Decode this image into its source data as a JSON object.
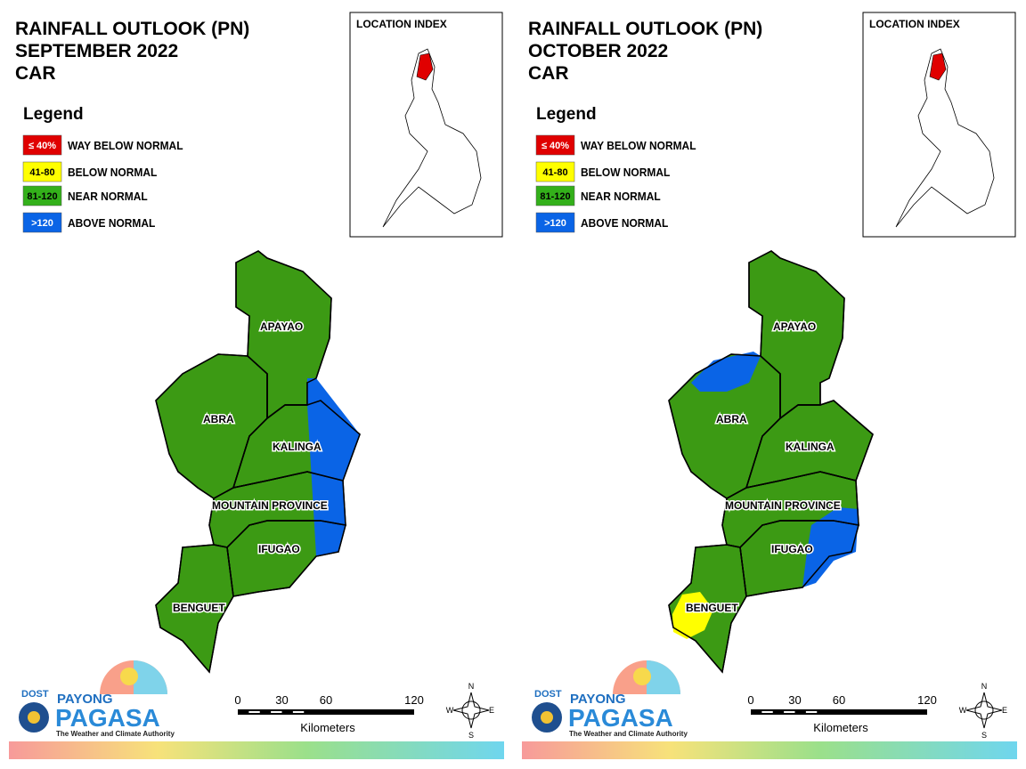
{
  "panels": [
    {
      "title": [
        "RAINFALL OUTLOOK (PN)",
        "SEPTEMBER 2022",
        "CAR"
      ],
      "location_index": "LOCATION INDEX",
      "legend": {
        "title": "Legend",
        "items": [
          {
            "key": "≤ 40%",
            "label": "WAY BELOW NORMAL"
          },
          {
            "key": "41-80",
            "label": "BELOW NORMAL"
          },
          {
            "key": "81-120",
            "label": "NEAR NORMAL"
          },
          {
            "key": ">120",
            "label": "ABOVE NORMAL"
          }
        ]
      },
      "provinces": [
        "APAYAO",
        "ABRA",
        "KALINGA",
        "MOUNTAIN PROVINCE",
        "IFUGAO",
        "BENGUET"
      ],
      "scale": {
        "ticks": [
          0,
          30,
          60,
          120
        ],
        "unit": "Kilometers"
      },
      "compass": [
        "N",
        "E",
        "S",
        "W"
      ],
      "logo": {
        "agency": "DOST",
        "brand1": "PAYONG",
        "brand2": "PAGASA",
        "tagline": "The Weather and Climate Authority"
      }
    },
    {
      "title": [
        "RAINFALL OUTLOOK (PN)",
        "OCTOBER 2022",
        "CAR"
      ],
      "location_index": "LOCATION INDEX",
      "legend": {
        "title": "Legend",
        "items": [
          {
            "key": "≤ 40%",
            "label": "WAY BELOW NORMAL"
          },
          {
            "key": "41-80",
            "label": "BELOW NORMAL"
          },
          {
            "key": "81-120",
            "label": "NEAR NORMAL"
          },
          {
            "key": ">120",
            "label": "ABOVE NORMAL"
          }
        ]
      },
      "provinces": [
        "APAYAO",
        "ABRA",
        "KALINGA",
        "MOUNTAIN PROVINCE",
        "IFUGAO",
        "BENGUET"
      ],
      "scale": {
        "ticks": [
          0,
          30,
          60,
          120
        ],
        "unit": "Kilometers"
      },
      "compass": [
        "N",
        "E",
        "S",
        "W"
      ],
      "logo": {
        "agency": "DOST",
        "brand1": "PAYONG",
        "brand2": "PAGASA",
        "tagline": "The Weather and Climate Authority"
      }
    }
  ]
}
